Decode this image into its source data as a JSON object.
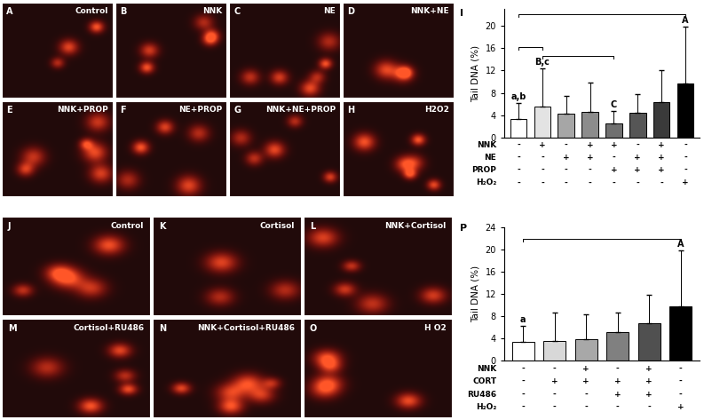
{
  "image_panels": [
    {
      "letter": "A",
      "label": "Control"
    },
    {
      "letter": "B",
      "label": "NNK"
    },
    {
      "letter": "C",
      "label": "NE"
    },
    {
      "letter": "D",
      "label": "NNK+NE"
    },
    {
      "letter": "E",
      "label": "NNK+PROP"
    },
    {
      "letter": "F",
      "label": "NE+PROP"
    },
    {
      "letter": "G",
      "label": "NNK+NE+PROP"
    },
    {
      "letter": "H",
      "label": "H2O2"
    },
    {
      "letter": "J",
      "label": "Control"
    },
    {
      "letter": "K",
      "label": "Cortisol"
    },
    {
      "letter": "L",
      "label": "NNK+Cortisol"
    },
    {
      "letter": "M",
      "label": "Cortisol+RU486"
    },
    {
      "letter": "N",
      "label": "NNK+Cortisol+RU486"
    },
    {
      "letter": "O",
      "label": "H O2"
    }
  ],
  "chart_data": [
    {
      "type": "bar",
      "panel": "I",
      "y_label": "Tail DNA (%)",
      "categories": [
        null,
        null,
        null,
        null,
        null,
        null,
        null,
        null
      ],
      "values": [
        3.3,
        5.6,
        4.3,
        4.6,
        2.5,
        4.4,
        6.4,
        9.7
      ],
      "errors": [
        2.9,
        6.8,
        3.2,
        5.2,
        2.3,
        3.4,
        5.6,
        10.1
      ],
      "colors": [
        "#ffffff",
        "#e3e3e3",
        "#a6a6a6",
        "#8c8c8c",
        "#707070",
        "#565656",
        "#3a3a3a",
        "#000000"
      ],
      "ylim": [
        0,
        23
      ],
      "yticks": [
        0,
        4,
        8,
        12,
        16,
        20
      ],
      "tick_labels": "y",
      "letters": [
        {
          "index": 0,
          "text": "a,b"
        },
        {
          "index": 1,
          "text": "B,c"
        },
        {
          "index": 4,
          "text": "C"
        },
        {
          "index": 7,
          "text": "A"
        }
      ],
      "brackets": [
        [
          1,
          4
        ],
        [
          0,
          1
        ],
        [
          0,
          7
        ]
      ],
      "table": [
        {
          "label": "NNK",
          "marks": [
            "-",
            "+",
            "-",
            "+",
            "+",
            "-",
            "+",
            "-"
          ]
        },
        {
          "label": "NE",
          "marks": [
            "-",
            "-",
            "+",
            "+",
            "-",
            "+",
            "+",
            "-"
          ]
        },
        {
          "label": "PROP",
          "marks": [
            "-",
            "-",
            "-",
            "-",
            "+",
            "+",
            "+",
            "-"
          ]
        },
        {
          "label": "H₂O₂",
          "marks": [
            "-",
            "-",
            "-",
            "-",
            "-",
            "-",
            "-",
            "+"
          ]
        }
      ]
    },
    {
      "type": "bar",
      "panel": "P",
      "y_label": "Tail DNA (%)",
      "categories": [
        null,
        null,
        null,
        null,
        null,
        null
      ],
      "values": [
        3.3,
        3.6,
        3.9,
        5.2,
        6.8,
        9.7
      ],
      "errors": [
        2.9,
        5.0,
        4.4,
        3.5,
        5.1,
        10.1
      ],
      "colors": [
        "#ffffff",
        "#d8d8d8",
        "#a8a8a8",
        "#808080",
        "#505050",
        "#000000"
      ],
      "ylim": [
        0,
        24
      ],
      "yticks": [
        0,
        4,
        8,
        12,
        16,
        20,
        24
      ],
      "tick_labels": "y",
      "letters": [
        {
          "index": 0,
          "text": "a"
        },
        {
          "index": 5,
          "text": "A"
        }
      ],
      "brackets": [
        [
          0,
          5
        ]
      ],
      "table": [
        {
          "label": "NNK",
          "marks": [
            "-",
            "-",
            "+",
            "-",
            "+",
            "-"
          ]
        },
        {
          "label": "CORT",
          "marks": [
            "-",
            "+",
            "+",
            "+",
            "+",
            "-"
          ]
        },
        {
          "label": "RU486",
          "marks": [
            "-",
            "-",
            "-",
            "+",
            "+",
            "-"
          ]
        },
        {
          "label": "H₂O₂",
          "marks": [
            "-",
            "-",
            "-",
            "-",
            "-",
            "+"
          ]
        }
      ]
    }
  ]
}
